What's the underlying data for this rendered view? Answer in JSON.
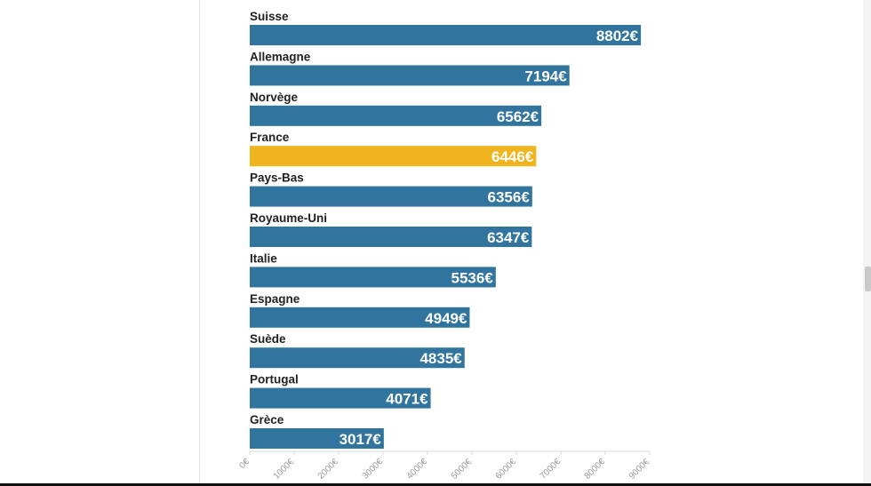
{
  "chart_data": {
    "type": "bar",
    "orientation": "horizontal",
    "categories": [
      "Suisse",
      "Allemagne",
      "Norvège",
      "France",
      "Pays-Bas",
      "Royaume-Uni",
      "Italie",
      "Espagne",
      "Suède",
      "Portugal",
      "Grèce"
    ],
    "values": [
      8802,
      7194,
      6562,
      6446,
      6356,
      6347,
      5536,
      4949,
      4835,
      4071,
      3017
    ],
    "value_labels": [
      "8802€",
      "7194€",
      "6562€",
      "6446€",
      "6356€",
      "6347€",
      "5536€",
      "4949€",
      "4835€",
      "4071€",
      "3017€"
    ],
    "highlight": "France",
    "colors": {
      "bar": "#31759f",
      "highlight": "#f0b41e",
      "tick": "#9a9a9a"
    },
    "xlim": [
      0,
      9000
    ],
    "x_ticks": [
      0,
      1000,
      2000,
      3000,
      4000,
      5000,
      6000,
      7000,
      8000,
      9000
    ],
    "x_tick_labels": [
      "0€",
      "1000€",
      "2000€",
      "3000€",
      "4000€",
      "5000€",
      "6000€",
      "7000€",
      "8000€",
      "9000€"
    ],
    "title": "",
    "xlabel": "",
    "ylabel": ""
  },
  "scrollbar": {
    "visible": true
  }
}
